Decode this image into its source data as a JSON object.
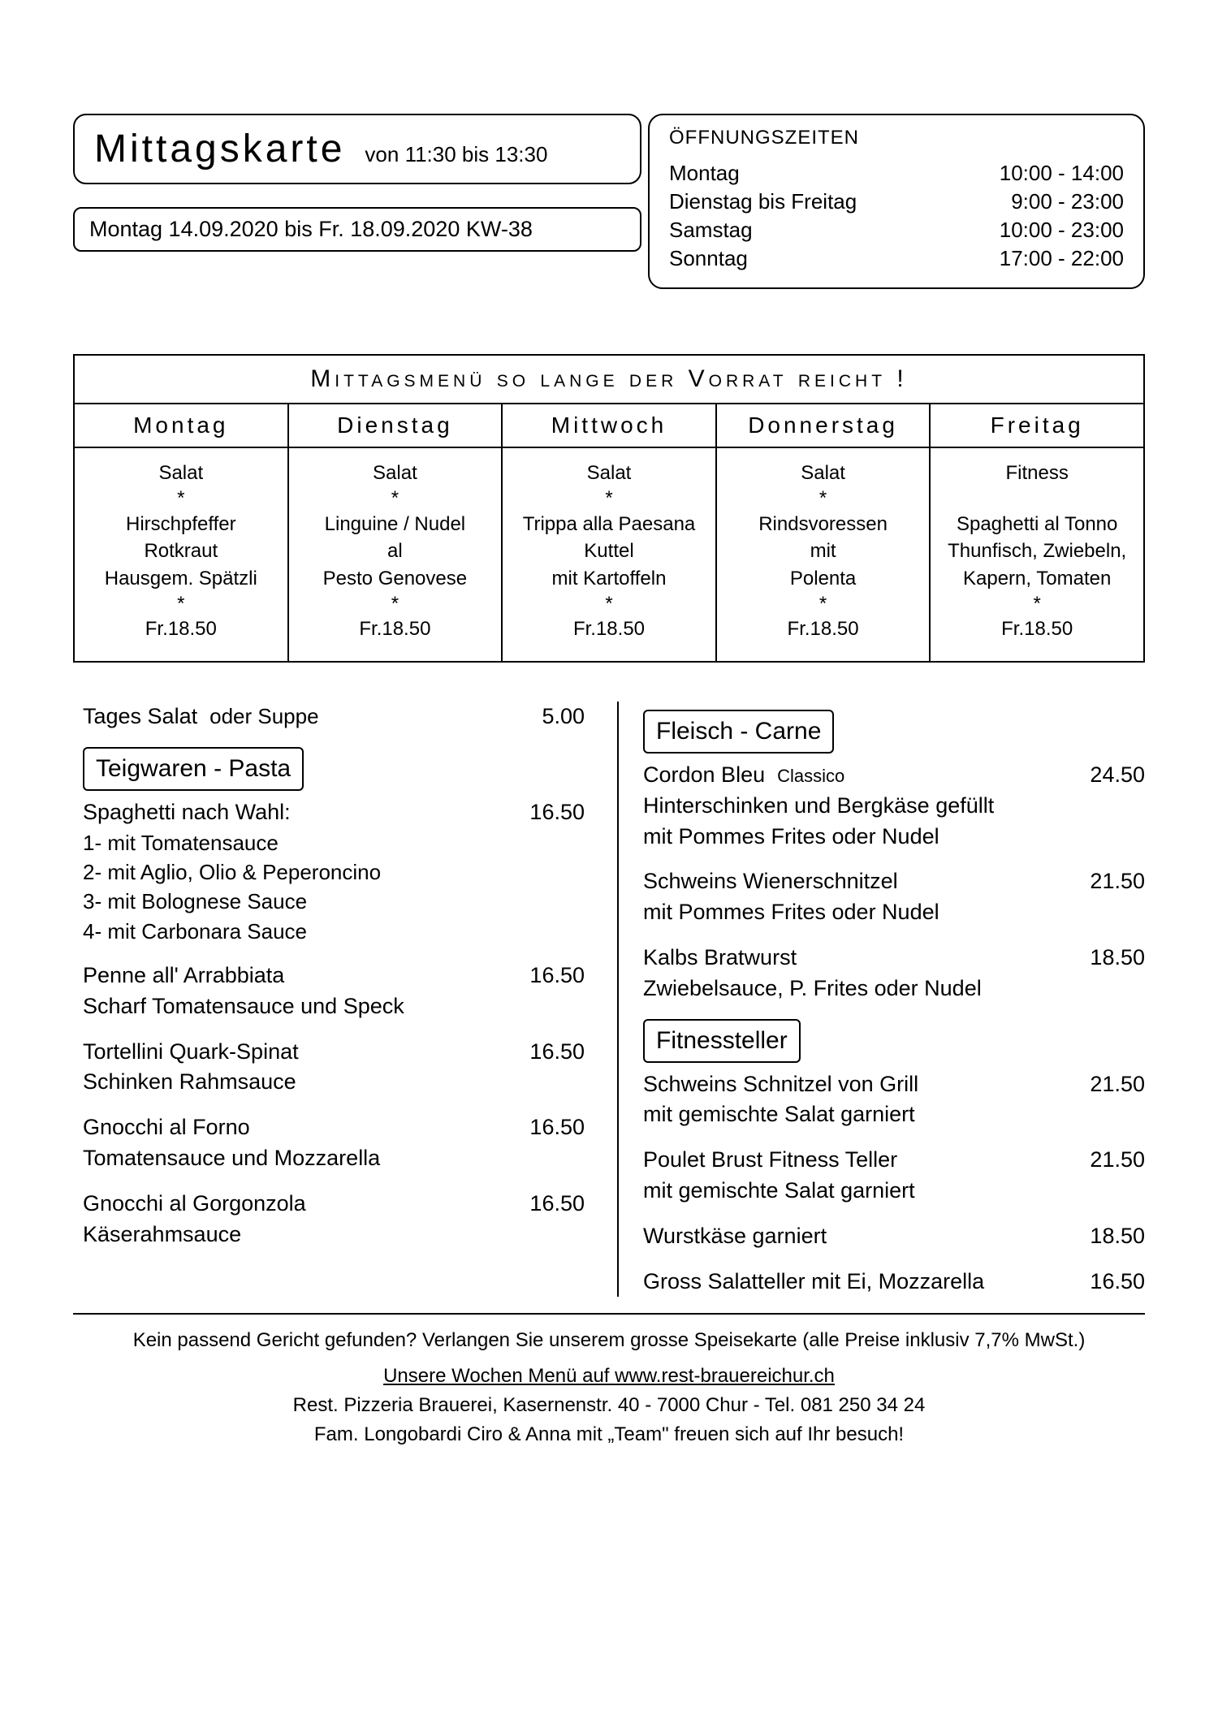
{
  "colors": {
    "background": "#ffffff",
    "text": "#000000",
    "border": "#000000"
  },
  "header": {
    "title": "Mittagskarte",
    "subtitle": "von 11:30 bis 13:30",
    "date_range": "Montag 14.09.2020 bis Fr. 18.09.2020  KW-38"
  },
  "hours": {
    "title": "ÖFFNUNGSZEITEN",
    "rows": [
      {
        "label": "Montag",
        "time": "10:00  -  14:00"
      },
      {
        "label": "Dienstag bis Freitag",
        "time": "9:00  -  23:00"
      },
      {
        "label": "Samstag",
        "time": "10:00  -  23:00"
      },
      {
        "label": "Sonntag",
        "time": "17:00  -  22:00"
      }
    ]
  },
  "banner": "Mittagsmenü so lange der Vorrat reicht !",
  "days": [
    {
      "name": "Montag",
      "starter": "Salat",
      "l1": "Hirschpfeffer",
      "l2": "Rotkraut",
      "l3": "Hausgem. Spätzli",
      "price": "Fr.18.50"
    },
    {
      "name": "Dienstag",
      "starter": "Salat",
      "l1": "Linguine / Nudel",
      "l2": "al",
      "l3": "Pesto Genovese",
      "price": "Fr.18.50"
    },
    {
      "name": "Mittwoch",
      "starter": "Salat",
      "l1": "Trippa alla Paesana",
      "l2": "Kuttel",
      "l3": "mit Kartoffeln",
      "price": "Fr.18.50"
    },
    {
      "name": "Donnerstag",
      "starter": "Salat",
      "l1": "Rindsvoressen",
      "l2": "mit",
      "l3": "Polenta",
      "price": "Fr.18.50"
    },
    {
      "name": "Freitag",
      "starter": "Fitness",
      "l1": "Spaghetti al Tonno",
      "l2": "Thunfisch, Zwiebeln,",
      "l3": "Kapern, Tomaten",
      "price": "Fr.18.50"
    }
  ],
  "left": {
    "tages_salat_label": "Tages Salat",
    "tages_salat_or": "oder Suppe",
    "tages_salat_price": "5.00",
    "pasta_heading": "Teigwaren - Pasta",
    "spaghetti_label": "Spaghetti nach Wahl:",
    "spaghetti_price": "16.50",
    "opt1": "1- mit Tomatensauce",
    "opt2": "2- mit Aglio, Olio & Peperoncino",
    "opt3": "3- mit Bolognese Sauce",
    "opt4": "4- mit Carbonara Sauce",
    "penne_label": "Penne all' Arrabbiata",
    "penne_price": "16.50",
    "penne_desc": "Scharf Tomatensauce und Speck",
    "tortellini_label": "Tortellini Quark-Spinat",
    "tortellini_price": "16.50",
    "tortellini_desc": "Schinken Rahmsauce",
    "gnocchi_forno_label": "Gnocchi al Forno",
    "gnocchi_forno_price": "16.50",
    "gnocchi_forno_desc": "Tomatensauce und Mozzarella",
    "gnocchi_gorg_label": "Gnocchi al Gorgonzola",
    "gnocchi_gorg_price": "16.50",
    "gnocchi_gorg_desc": "Käserahmsauce"
  },
  "right": {
    "meat_heading": "Fleisch - Carne",
    "cordon_label": "Cordon Bleu",
    "cordon_style": "Classico",
    "cordon_price": "24.50",
    "cordon_desc1": "Hinterschinken und Bergkäse gefüllt",
    "cordon_desc2": "mit Pommes Frites oder Nudel",
    "wiener_label": "Schweins Wienerschnitzel",
    "wiener_price": "21.50",
    "wiener_desc": "mit Pommes Frites oder Nudel",
    "brat_label": "Kalbs Bratwurst",
    "brat_price": "18.50",
    "brat_desc": "Zwiebelsauce, P. Frites oder Nudel",
    "fitness_heading": "Fitnessteller",
    "fit1_label": "Schweins Schnitzel von Grill",
    "fit1_price": "21.50",
    "fit1_desc": "mit gemischte Salat garniert",
    "fit2_label": "Poulet Brust Fitness Teller",
    "fit2_price": "21.50",
    "fit2_desc": "mit gemischte Salat garniert",
    "wurst_label": "Wurstkäse garniert",
    "wurst_price": "18.50",
    "salat_label": "Gross Salatteller mit Ei, Mozzarella",
    "salat_price": "16.50"
  },
  "footer": {
    "l1": "Kein passend Gericht gefunden? Verlangen Sie unserem grosse Speisekarte  (alle Preise inklusiv 7,7% MwSt.)",
    "l2a": "Unsere Wochen Menü auf  ",
    "l2b": "www.rest-brauereichur.ch",
    "l3": "Rest. Pizzeria Brauerei,  Kasernenstr. 40 - 7000 Chur - Tel. 081 250 34 24",
    "l4": "Fam. Longobardi Ciro & Anna mit „Team\" freuen sich auf Ihr besuch!"
  }
}
